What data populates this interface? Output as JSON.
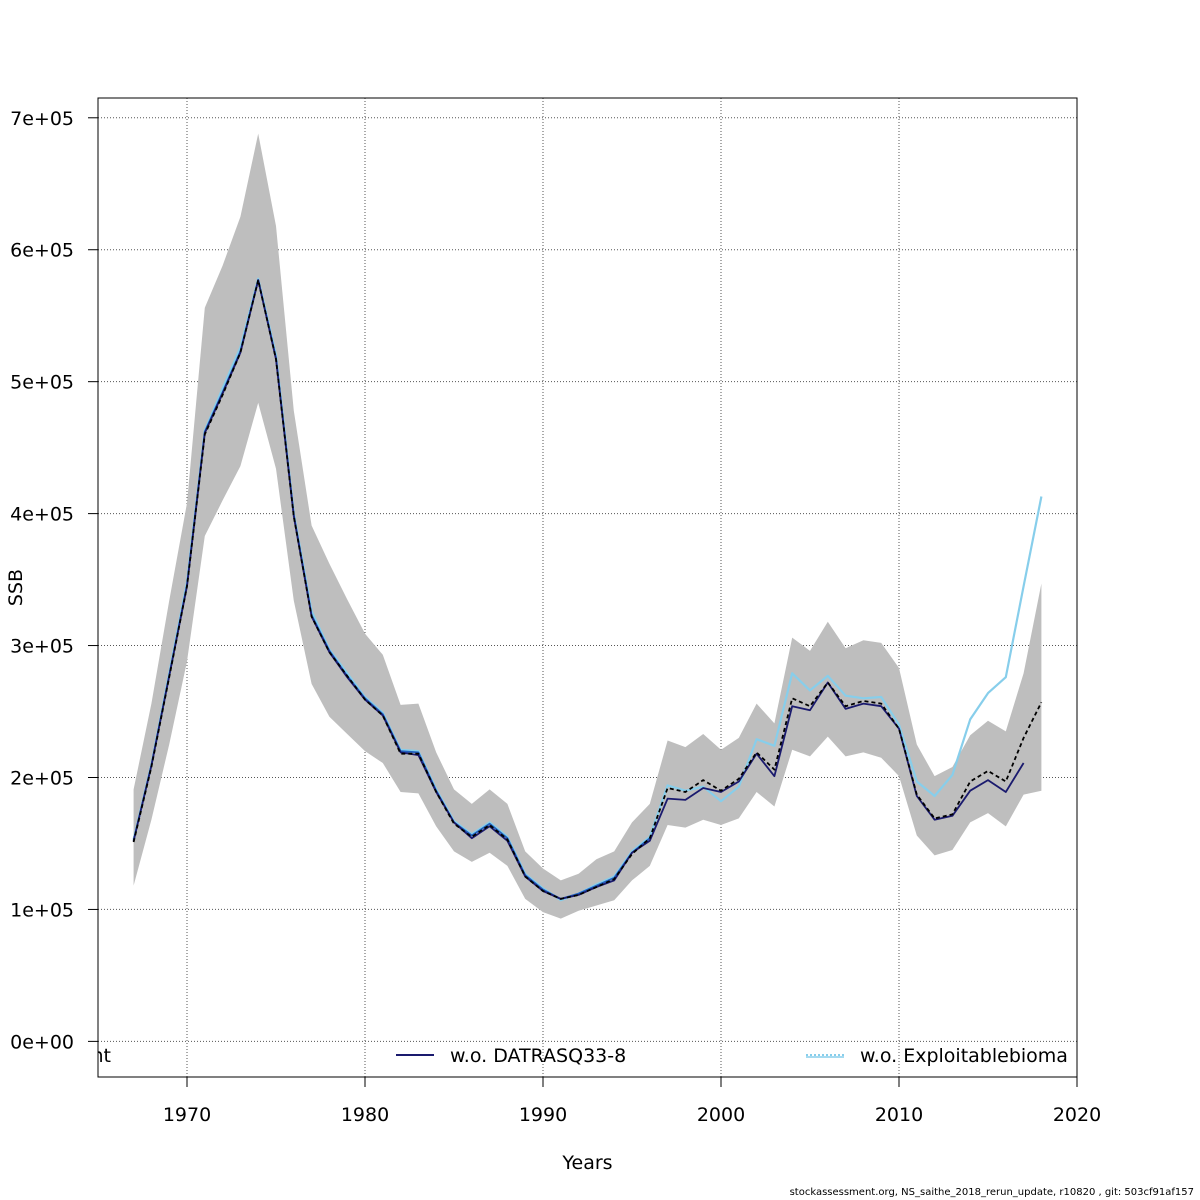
{
  "chart_data": {
    "type": "line",
    "title": "",
    "xlabel": "Years",
    "ylabel": "SSB",
    "xlim": [
      1965,
      2020
    ],
    "ylim": [
      -27000,
      715000
    ],
    "grid": true,
    "x_ticks": [
      1970,
      1980,
      1990,
      2000,
      2010,
      2020
    ],
    "x_tick_labels": [
      "1970",
      "1980",
      "1990",
      "2000",
      "2010",
      "2020"
    ],
    "y_ticks": [
      0,
      100000,
      200000,
      300000,
      400000,
      500000,
      600000,
      700000
    ],
    "y_tick_labels": [
      "0e+00",
      "1e+05",
      "2e+05",
      "3e+05",
      "4e+05",
      "5e+05",
      "6e+05",
      "7e+05"
    ],
    "legend_placement": "bottom",
    "legend": [
      {
        "label": "nt",
        "color": "#000000",
        "dash": "solid"
      },
      {
        "label": "w.o. DATRASQ33-8",
        "color": "#1a1a6e",
        "dash": "solid"
      },
      {
        "label": "w.o. Exploitablebioma",
        "color": "#87ceeb",
        "dash": "dotted"
      }
    ],
    "band": {
      "color": "#bebebe",
      "x": [
        1967,
        1968,
        1969,
        1970,
        1971,
        1972,
        1973,
        1974,
        1975,
        1976,
        1977,
        1978,
        1979,
        1980,
        1981,
        1982,
        1983,
        1984,
        1985,
        1986,
        1987,
        1988,
        1989,
        1990,
        1991,
        1992,
        1993,
        1994,
        1995,
        1996,
        1997,
        1998,
        1999,
        2000,
        2001,
        2002,
        2003,
        2004,
        2005,
        2006,
        2007,
        2008,
        2009,
        2010,
        2011,
        2012,
        2013,
        2014,
        2015,
        2016,
        2017,
        2018
      ],
      "lower": [
        118000,
        168000,
        225000,
        288000,
        383000,
        410000,
        436000,
        484000,
        434000,
        334000,
        271000,
        246000,
        233000,
        220000,
        211000,
        189000,
        188000,
        163000,
        144000,
        136000,
        143000,
        133000,
        108000,
        98000,
        93000,
        99000,
        103000,
        107000,
        122000,
        133000,
        164000,
        162000,
        168000,
        164000,
        169000,
        189000,
        178000,
        221000,
        216000,
        231000,
        216000,
        219000,
        215000,
        201000,
        156000,
        141000,
        145000,
        166000,
        173000,
        163000,
        187000,
        190000
      ],
      "upper": [
        191000,
        256000,
        334000,
        408000,
        556000,
        588000,
        625000,
        688000,
        618000,
        478000,
        391000,
        362000,
        335000,
        309000,
        293000,
        255000,
        256000,
        219000,
        191000,
        180000,
        191000,
        180000,
        144000,
        131000,
        122000,
        127000,
        138000,
        144000,
        166000,
        180000,
        228000,
        223000,
        233000,
        221000,
        230000,
        256000,
        241000,
        306000,
        296000,
        318000,
        298000,
        304000,
        302000,
        283000,
        225000,
        201000,
        208000,
        232000,
        243000,
        235000,
        279000,
        347000
      ]
    },
    "series": [
      {
        "name": "",
        "color": "#000000",
        "dash": "4 3",
        "x": [
          1967,
          1968,
          1969,
          1970,
          1971,
          1972,
          1973,
          1974,
          1975,
          1976,
          1977,
          1978,
          1979,
          1980,
          1981,
          1982,
          1983,
          1984,
          1985,
          1986,
          1987,
          1988,
          1989,
          1990,
          1991,
          1992,
          1993,
          1994,
          1995,
          1996,
          1997,
          1998,
          1999,
          2000,
          2001,
          2002,
          2003,
          2004,
          2005,
          2006,
          2007,
          2008,
          2009,
          2010,
          2011,
          2012,
          2013,
          2014,
          2015,
          2016,
          2017,
          2018
        ],
        "values": [
          151000,
          208000,
          276000,
          345000,
          460000,
          490000,
          522000,
          577000,
          517000,
          398000,
          322000,
          295000,
          277000,
          259000,
          247000,
          218000,
          218000,
          189000,
          165000,
          155000,
          164000,
          153000,
          125000,
          114000,
          108000,
          111000,
          117000,
          123000,
          142000,
          154000,
          192000,
          189000,
          198000,
          190000,
          199000,
          219000,
          206000,
          260000,
          254000,
          272000,
          254000,
          258000,
          256000,
          237000,
          187000,
          169000,
          172000,
          197000,
          205000,
          197000,
          230000,
          257000
        ]
      },
      {
        "name": "w.o. DATRASQ33-8",
        "color": "#1a1a6e",
        "dash": "",
        "x": [
          1967,
          1968,
          1969,
          1970,
          1971,
          1972,
          1973,
          1974,
          1975,
          1976,
          1977,
          1978,
          1979,
          1980,
          1981,
          1982,
          1983,
          1984,
          1985,
          1986,
          1987,
          1988,
          1989,
          1990,
          1991,
          1992,
          1993,
          1994,
          1995,
          1996,
          1997,
          1998,
          1999,
          2000,
          2001,
          2002,
          2003,
          2004,
          2005,
          2006,
          2007,
          2008,
          2009,
          2010,
          2011,
          2012,
          2013,
          2014,
          2015,
          2016,
          2017
        ],
        "values": [
          152000,
          209000,
          277000,
          345000,
          461000,
          491000,
          522000,
          577000,
          517000,
          398000,
          322000,
          295000,
          276000,
          259000,
          247000,
          219000,
          217000,
          189000,
          166000,
          154000,
          163000,
          152000,
          125000,
          114000,
          108000,
          111000,
          117000,
          122000,
          143000,
          152000,
          184000,
          183000,
          192000,
          189000,
          197000,
          218000,
          201000,
          254000,
          251000,
          272000,
          252000,
          256000,
          254000,
          237000,
          186000,
          168000,
          171000,
          190000,
          198000,
          189000,
          211000
        ]
      },
      {
        "name": "w.o. Exploitablebioma",
        "color": "#87ceeb",
        "dash": "",
        "x": [
          1967,
          1968,
          1969,
          1970,
          1971,
          1972,
          1973,
          1974,
          1975,
          1976,
          1977,
          1978,
          1979,
          1980,
          1981,
          1982,
          1983,
          1984,
          1985,
          1986,
          1987,
          1988,
          1989,
          1990,
          1991,
          1992,
          1993,
          1994,
          1995,
          1996,
          1997,
          1998,
          1999,
          2000,
          2001,
          2002,
          2003,
          2004,
          2005,
          2006,
          2007,
          2008,
          2009,
          2010,
          2011,
          2012,
          2013,
          2014,
          2015,
          2016,
          2017,
          2018
        ],
        "values": [
          153000,
          210000,
          279000,
          348000,
          463000,
          495000,
          526000,
          578000,
          520000,
          400000,
          326000,
          297000,
          279000,
          261000,
          249000,
          221000,
          220000,
          191000,
          167000,
          157000,
          166000,
          155000,
          127000,
          116000,
          107000,
          112000,
          119000,
          125000,
          144000,
          155000,
          194000,
          190000,
          193000,
          182000,
          193000,
          229000,
          224000,
          279000,
          266000,
          277000,
          262000,
          260000,
          261000,
          240000,
          197000,
          186000,
          202000,
          244000,
          264000,
          276000,
          345000,
          413000
        ]
      },
      {
        "name": "",
        "color": "#2060c0",
        "dash": "",
        "x": [
          1967,
          1968,
          1969,
          1970,
          1971,
          1972,
          1973,
          1974,
          1975,
          1976,
          1977,
          1978,
          1979,
          1980,
          1981,
          1982,
          1983,
          1984,
          1985,
          1986,
          1987,
          1988,
          1989,
          1990,
          1991,
          1992,
          1993,
          1994,
          1995,
          1996
        ],
        "values": [
          152000,
          209000,
          277000,
          346000,
          462000,
          492000,
          523000,
          577000,
          518000,
          399000,
          323000,
          296000,
          277000,
          260000,
          248000,
          220000,
          219000,
          190000,
          166000,
          156000,
          165000,
          154000,
          126000,
          115000,
          108000,
          112000,
          118000,
          124000,
          143000,
          154000
        ]
      }
    ]
  },
  "footer": "stockassessment.org, NS_saithe_2018_rerun_update, r10820 , git: 503cf91af157"
}
